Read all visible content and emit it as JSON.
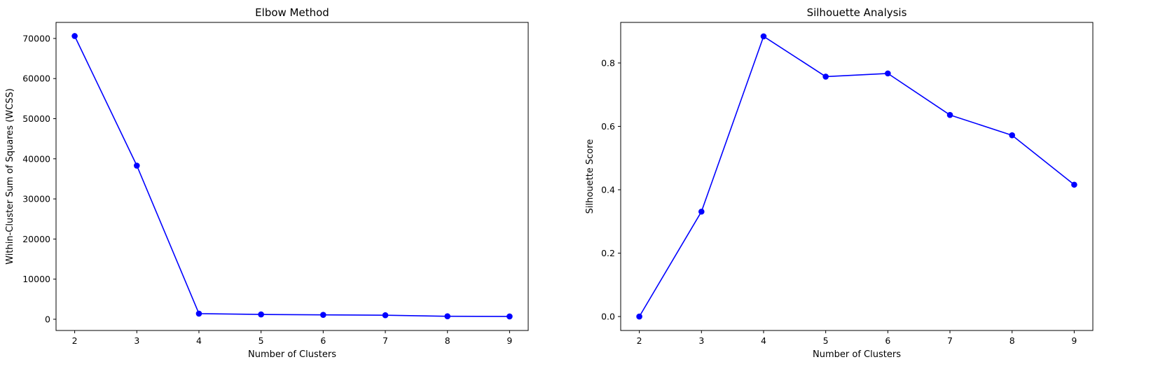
{
  "chart_data": [
    {
      "type": "line",
      "title": "Elbow Method",
      "xlabel": "Number of Clusters",
      "ylabel": "Within-Cluster Sum of Squares (WCSS)",
      "x": [
        2,
        3,
        4,
        5,
        6,
        7,
        8,
        9
      ],
      "series": [
        {
          "values": [
            70600,
            38300,
            1400,
            1200,
            1100,
            1000,
            750,
            700
          ]
        }
      ],
      "xlim": [
        1.7,
        9.3
      ],
      "ylim": [
        -2800,
        74000
      ],
      "xticks": [
        2,
        3,
        4,
        5,
        6,
        7,
        8,
        9
      ],
      "yticks": [
        0,
        10000,
        20000,
        30000,
        40000,
        50000,
        60000,
        70000
      ],
      "ytick_labels": [
        "0",
        "10000",
        "20000",
        "30000",
        "40000",
        "50000",
        "60000",
        "70000"
      ],
      "color": "#0000ff",
      "marker": "circle",
      "grid": false,
      "legend": false
    },
    {
      "type": "line",
      "title": "Silhouette Analysis",
      "xlabel": "Number of Clusters",
      "ylabel": "Silhouette Score",
      "x": [
        2,
        3,
        4,
        5,
        6,
        7,
        8,
        9
      ],
      "series": [
        {
          "values": [
            0.0,
            0.331,
            0.884,
            0.757,
            0.767,
            0.636,
            0.572,
            0.416
          ]
        }
      ],
      "xlim": [
        1.7,
        9.3
      ],
      "ylim": [
        -0.044,
        0.928
      ],
      "xticks": [
        2,
        3,
        4,
        5,
        6,
        7,
        8,
        9
      ],
      "yticks": [
        0.0,
        0.2,
        0.4,
        0.6,
        0.8
      ],
      "ytick_labels": [
        "0.0",
        "0.2",
        "0.4",
        "0.6",
        "0.8"
      ],
      "color": "#0000ff",
      "marker": "circle",
      "grid": false,
      "legend": false
    }
  ]
}
